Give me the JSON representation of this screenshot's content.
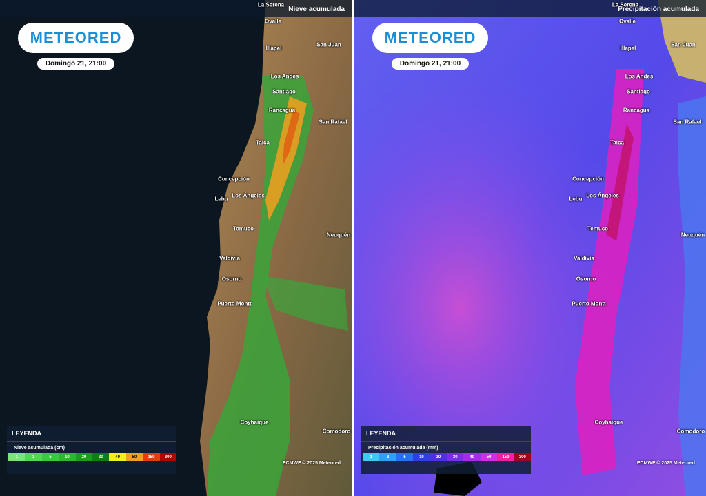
{
  "panels": [
    {
      "header": "Nieve acumulada",
      "logo": "METEORED",
      "date": "Domingo 21, 21:00",
      "cities": [
        "La Serena",
        "Ovalle",
        "Illapel",
        "San Juan",
        "Los Andes",
        "Santiago",
        "Rancagua",
        "San Rafael",
        "Talca",
        "Concepción",
        "Los Ángeles",
        "Lebu",
        "Temuco",
        "Neuquén",
        "Valdivia",
        "Osorno",
        "Puerto Montt",
        "Coyhaique",
        "Comodoro"
      ],
      "legend": {
        "heading": "LEYENDA",
        "title": "Nieve acumulada (cm)",
        "scale": [
          "1",
          "3",
          "5",
          "10",
          "20",
          "30",
          "40",
          "50",
          "150",
          "300"
        ]
      },
      "credit": "ECMWF © 2025 Meteored"
    },
    {
      "header": "Precipitación acumulada",
      "logo": "METEORED",
      "date": "Domingo 21, 21:00",
      "cities": [
        "La Serena",
        "Ovalle",
        "Illapel",
        "San Juan",
        "Los Andes",
        "Santiago",
        "Rancagua",
        "San Rafael",
        "Talca",
        "Concepción",
        "Los Ángeles",
        "Lebu",
        "Temuco",
        "Neuquén",
        "Valdivia",
        "Osorno",
        "Puerto Montt",
        "Coyhaique",
        "Comodoro"
      ],
      "legend": {
        "heading": "LEYENDA",
        "title": "Precipitación acumulada (mm)",
        "scale": [
          "1",
          "3",
          "5",
          "10",
          "20",
          "30",
          "40",
          "50",
          "150",
          "300"
        ]
      },
      "credit": "ECMWF © 2025 Meteored"
    }
  ]
}
